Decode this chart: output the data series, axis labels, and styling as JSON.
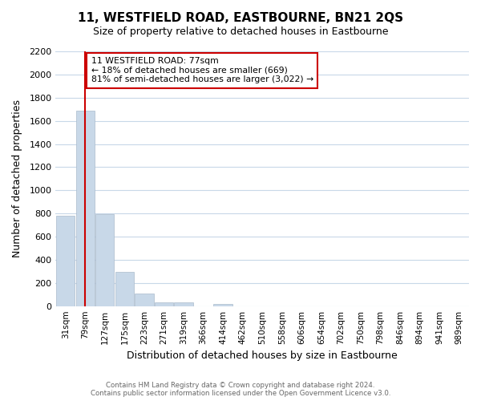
{
  "title": "11, WESTFIELD ROAD, EASTBOURNE, BN21 2QS",
  "subtitle": "Size of property relative to detached houses in Eastbourne",
  "xlabel": "Distribution of detached houses by size in Eastbourne",
  "ylabel": "Number of detached properties",
  "bar_values": [
    780,
    1690,
    795,
    295,
    110,
    35,
    35,
    0,
    20,
    0,
    0,
    0,
    0,
    0,
    0,
    0,
    0,
    0,
    0,
    0,
    0
  ],
  "categories": [
    "31sqm",
    "79sqm",
    "127sqm",
    "175sqm",
    "223sqm",
    "271sqm",
    "319sqm",
    "366sqm",
    "414sqm",
    "462sqm",
    "510sqm",
    "558sqm",
    "606sqm",
    "654sqm",
    "702sqm",
    "750sqm",
    "798sqm",
    "846sqm",
    "894sqm",
    "941sqm",
    "989sqm"
  ],
  "bar_color": "#c8d8e8",
  "bar_edge_color": "#aabbcc",
  "vline_x": 1.0,
  "vline_color": "#cc0000",
  "annotation_title": "11 WESTFIELD ROAD: 77sqm",
  "annotation_line1": "← 18% of detached houses are smaller (669)",
  "annotation_line2": "81% of semi-detached houses are larger (3,022) →",
  "annotation_box_color": "#ffffff",
  "annotation_border_color": "#cc0000",
  "ylim": [
    0,
    2200
  ],
  "yticks": [
    0,
    200,
    400,
    600,
    800,
    1000,
    1200,
    1400,
    1600,
    1800,
    2000,
    2200
  ],
  "footer_line1": "Contains HM Land Registry data © Crown copyright and database right 2024.",
  "footer_line2": "Contains public sector information licensed under the Open Government Licence v3.0.",
  "background_color": "#ffffff",
  "grid_color": "#c8d8e8"
}
